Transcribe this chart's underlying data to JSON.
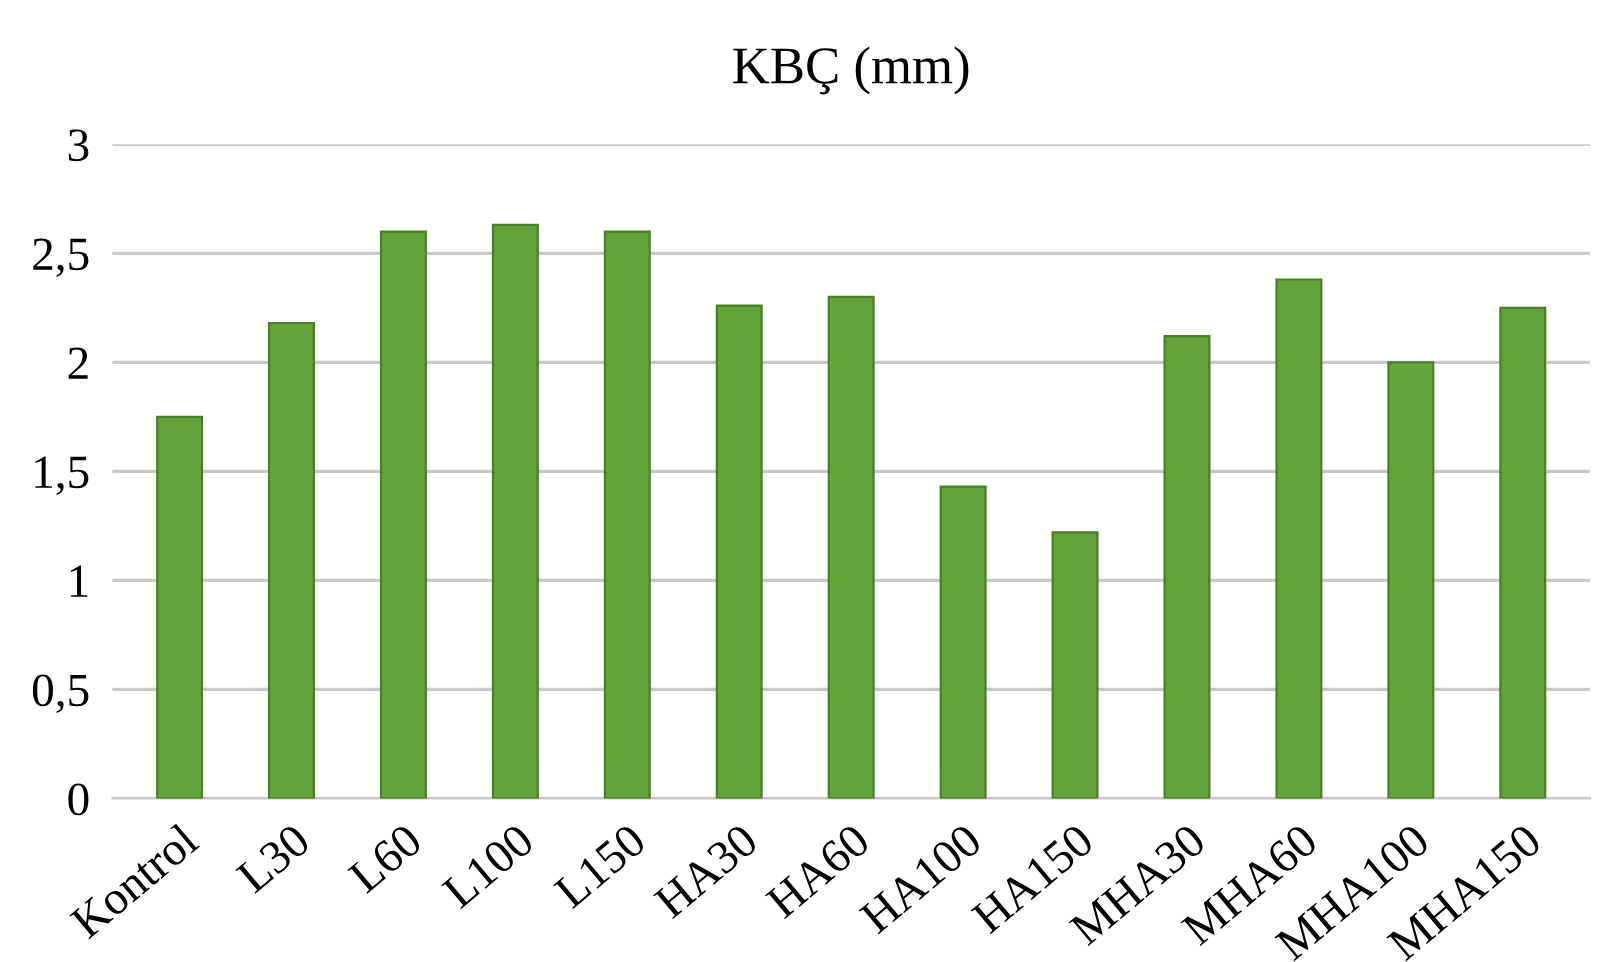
{
  "chart_data": {
    "type": "bar",
    "title": "KBÇ (mm)",
    "categories": [
      "Kontrol",
      "L30",
      "L60",
      "L100",
      "L150",
      "HA30",
      "HA60",
      "HA100",
      "HA150",
      "MHA30",
      "MHA60",
      "MHA100",
      "MHA150"
    ],
    "values": [
      1.75,
      2.18,
      2.6,
      2.63,
      2.6,
      2.26,
      2.3,
      1.43,
      1.22,
      2.12,
      2.38,
      2.0,
      2.25
    ],
    "color": "#62a33a",
    "ylim": [
      0,
      3
    ],
    "yticks": [
      0,
      {
        "value": 0.5,
        "label": "0,5"
      },
      1,
      {
        "value": 1.5,
        "label": "1,5"
      },
      2,
      {
        "value": 2.5,
        "label": "2,5"
      },
      3
    ],
    "grid": "y"
  }
}
